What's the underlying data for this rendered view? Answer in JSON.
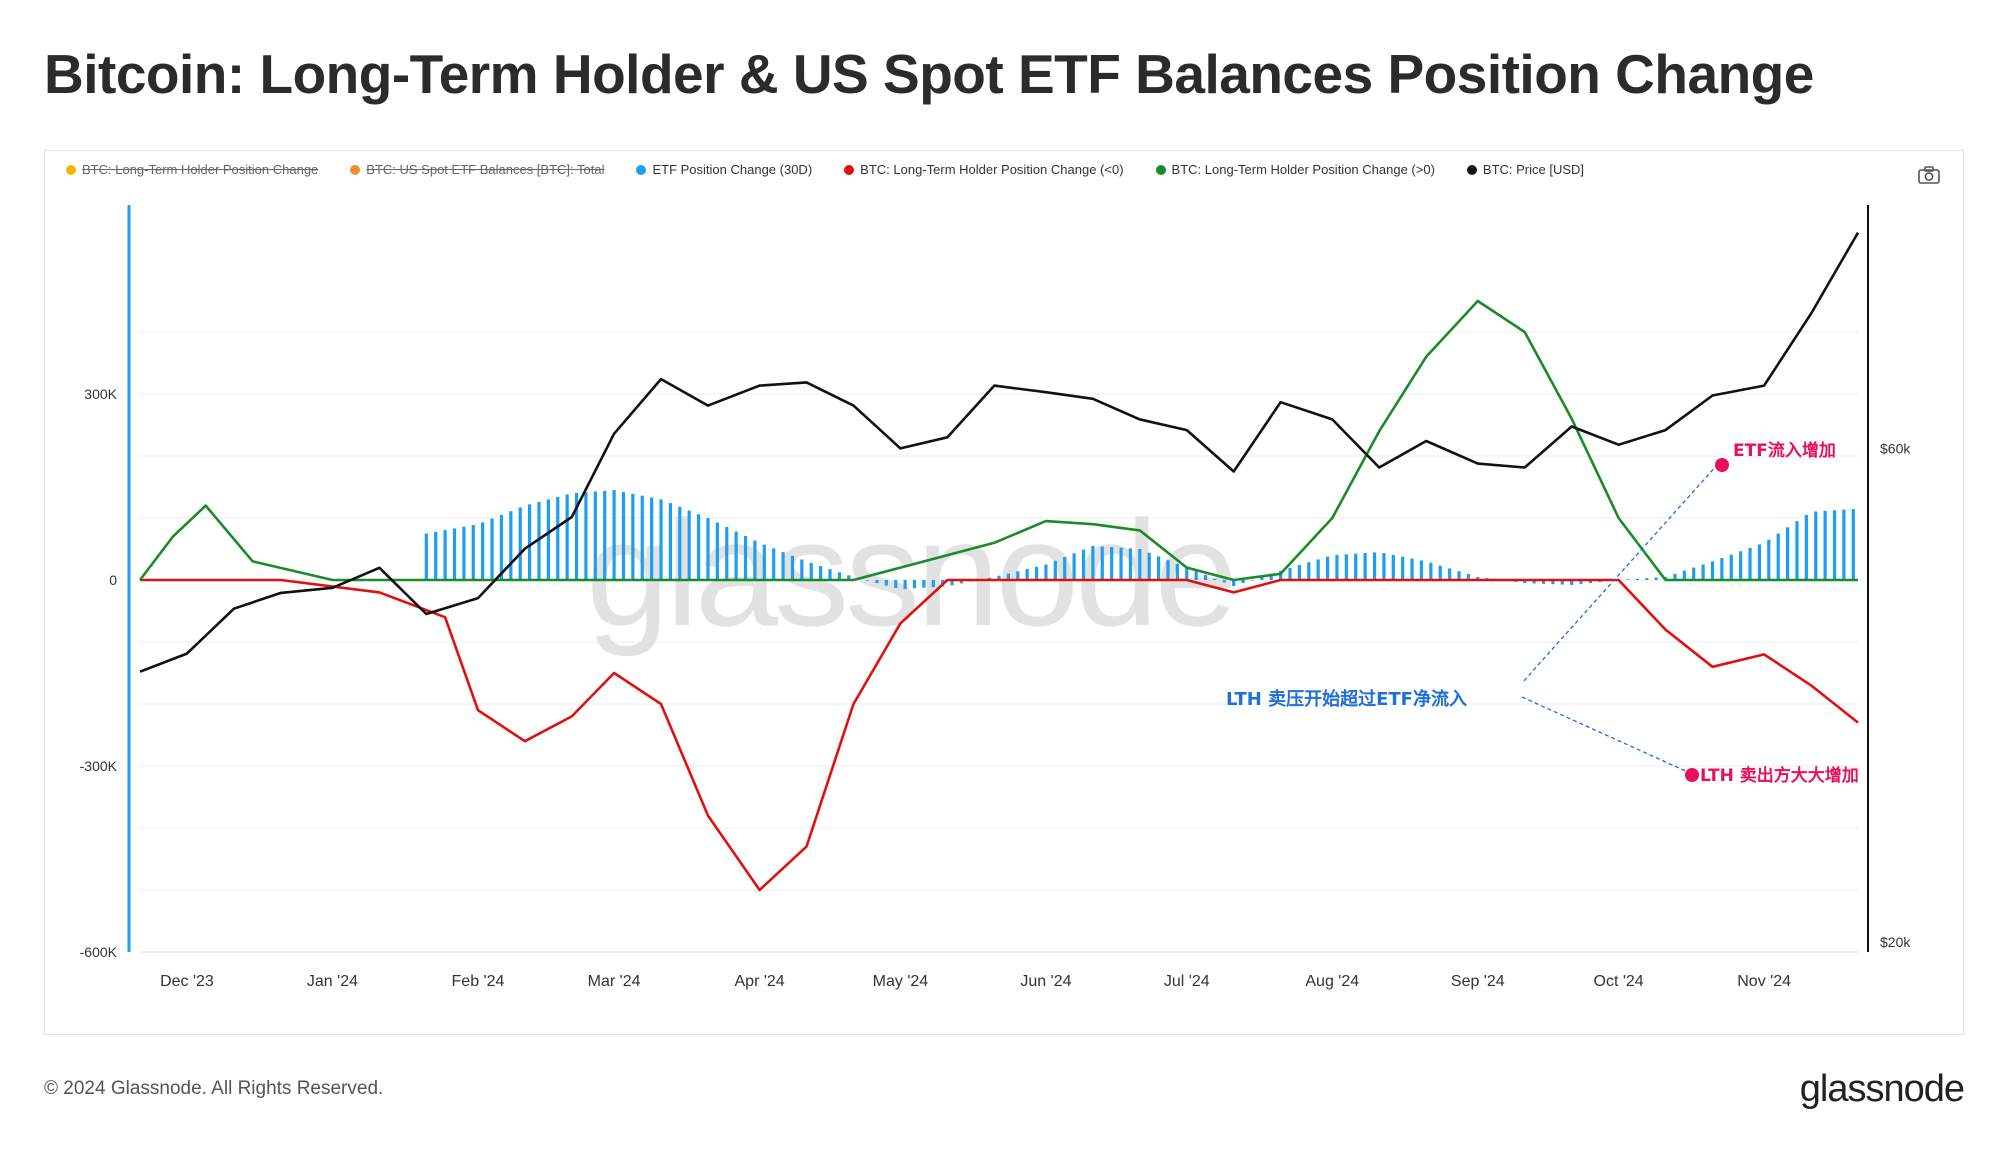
{
  "title": "Bitcoin: Long-Term Holder & US Spot ETF Balances Position Change",
  "legend": [
    {
      "label": "BTC: Long-Term Holder Position Change",
      "color": "#f2b705",
      "disabled": true
    },
    {
      "label": "BTC: US Spot ETF Balances [BTC]: Total",
      "color": "#f28c28",
      "disabled": true
    },
    {
      "label": "ETF Position Change (30D)",
      "color": "#1e9ef0",
      "disabled": false
    },
    {
      "label": "BTC: Long-Term Holder Position Change (<0)",
      "color": "#e01010",
      "disabled": false
    },
    {
      "label": "BTC: Long-Term Holder Position Change (>0)",
      "color": "#1a8a2a",
      "disabled": false
    },
    {
      "label": "BTC: Price [USD]",
      "color": "#111111",
      "disabled": false
    }
  ],
  "watermark": "glassnode",
  "annotations": {
    "etf": "ETF流入增加",
    "lth_cross": "LTH 卖压开始超过ETF净流入",
    "lth_sell": "LTH 卖出方大大增加"
  },
  "footer": {
    "copyright": "© 2024 Glassnode. All Rights Reserved.",
    "brand": "glassnode"
  },
  "chart_data": {
    "type": "line",
    "x_start": "2023-11-21",
    "x_end": "2024-11-21",
    "x_ticks": [
      "Dec '23",
      "Jan '24",
      "Feb '24",
      "Mar '24",
      "Apr '24",
      "May '24",
      "Jun '24",
      "Jul '24",
      "Aug '24",
      "Sep '24",
      "Oct '24",
      "Nov '24"
    ],
    "left_axis": {
      "ticks": [
        "300K",
        "0",
        "-300K",
        "-600K"
      ],
      "values": [
        300000,
        0,
        -300000,
        -600000
      ],
      "range": [
        -600000,
        600000
      ],
      "color": "#1e9ef0"
    },
    "right_axis": {
      "ticks": [
        "$60k",
        "$20k"
      ],
      "values": [
        60000,
        20000
      ],
      "scale": "log",
      "range": [
        20000,
        102000
      ],
      "color": "#111111"
    },
    "series": [
      {
        "name": "ETF Position Change (30D)",
        "type": "bar",
        "axis": "left",
        "color": "#1e9ef0",
        "x": [
          "2024-01-21",
          "2024-02-01",
          "2024-02-11",
          "2024-02-21",
          "2024-03-01",
          "2024-03-11",
          "2024-03-21",
          "2024-04-01",
          "2024-04-11",
          "2024-04-21",
          "2024-05-01",
          "2024-05-11",
          "2024-05-21",
          "2024-06-01",
          "2024-06-11",
          "2024-06-21",
          "2024-07-01",
          "2024-07-11",
          "2024-07-21",
          "2024-08-01",
          "2024-08-11",
          "2024-08-21",
          "2024-09-01",
          "2024-09-11",
          "2024-09-21",
          "2024-10-01",
          "2024-10-11",
          "2024-10-21",
          "2024-11-01",
          "2024-11-11",
          "2024-11-21"
        ],
        "values": [
          75000,
          90000,
          120000,
          140000,
          145000,
          130000,
          100000,
          60000,
          30000,
          5000,
          -15000,
          -10000,
          5000,
          25000,
          55000,
          50000,
          20000,
          -10000,
          15000,
          40000,
          45000,
          30000,
          5000,
          -5000,
          -8000,
          0,
          5000,
          30000,
          60000,
          110000,
          115000
        ]
      },
      {
        "name": "BTC: Long-Term Holder Position Change (<0)",
        "type": "line",
        "axis": "left",
        "color": "#e01010",
        "x": [
          "2023-11-21",
          "2023-12-21",
          "2024-01-11",
          "2024-01-25",
          "2024-02-01",
          "2024-02-11",
          "2024-02-21",
          "2024-03-01",
          "2024-03-11",
          "2024-03-21",
          "2024-04-01",
          "2024-04-11",
          "2024-04-21",
          "2024-05-01",
          "2024-05-11",
          "2024-06-01",
          "2024-07-01",
          "2024-07-11",
          "2024-07-21",
          "2024-08-01",
          "2024-09-01",
          "2024-10-01",
          "2024-10-11",
          "2024-10-21",
          "2024-11-01",
          "2024-11-11",
          "2024-11-21"
        ],
        "values": [
          0,
          0,
          -20000,
          -60000,
          -210000,
          -260000,
          -220000,
          -150000,
          -200000,
          -380000,
          -500000,
          -430000,
          -200000,
          -70000,
          0,
          0,
          0,
          -20000,
          0,
          0,
          0,
          0,
          -80000,
          -140000,
          -120000,
          -170000,
          -230000
        ]
      },
      {
        "name": "BTC: Long-Term Holder Position Change (>0)",
        "type": "line",
        "axis": "left",
        "color": "#1a8a2a",
        "x": [
          "2023-11-21",
          "2023-11-28",
          "2023-12-05",
          "2023-12-15",
          "2024-01-01",
          "2024-04-21",
          "2024-05-01",
          "2024-05-21",
          "2024-06-01",
          "2024-06-11",
          "2024-06-21",
          "2024-07-01",
          "2024-07-11",
          "2024-07-21",
          "2024-08-01",
          "2024-08-11",
          "2024-08-21",
          "2024-09-01",
          "2024-09-11",
          "2024-09-21",
          "2024-10-01",
          "2024-10-11",
          "2024-11-21"
        ],
        "values": [
          0,
          70000,
          120000,
          30000,
          0,
          0,
          20000,
          60000,
          95000,
          90000,
          80000,
          20000,
          0,
          10000,
          100000,
          240000,
          360000,
          450000,
          400000,
          260000,
          100000,
          0,
          0
        ]
      },
      {
        "name": "BTC: Price [USD]",
        "type": "line",
        "axis": "right",
        "color": "#111111",
        "x": [
          "2023-11-21",
          "2023-12-01",
          "2023-12-11",
          "2023-12-21",
          "2024-01-01",
          "2024-01-11",
          "2024-01-21",
          "2024-02-01",
          "2024-02-11",
          "2024-02-21",
          "2024-03-01",
          "2024-03-11",
          "2024-03-21",
          "2024-04-01",
          "2024-04-11",
          "2024-04-21",
          "2024-05-01",
          "2024-05-11",
          "2024-05-21",
          "2024-06-01",
          "2024-06-11",
          "2024-06-21",
          "2024-07-01",
          "2024-07-11",
          "2024-07-21",
          "2024-08-01",
          "2024-08-11",
          "2024-08-21",
          "2024-09-01",
          "2024-09-11",
          "2024-09-21",
          "2024-10-01",
          "2024-10-11",
          "2024-10-21",
          "2024-11-01",
          "2024-11-11",
          "2024-11-21"
        ],
        "values": [
          36500,
          38000,
          42000,
          43500,
          44000,
          46000,
          41500,
          43000,
          48000,
          51500,
          62000,
          70000,
          66000,
          69000,
          69500,
          66000,
          60000,
          61500,
          69000,
          68000,
          67000,
          64000,
          62500,
          57000,
          66500,
          64000,
          57500,
          61000,
          58000,
          57500,
          63000,
          60500,
          62500,
          67500,
          69000,
          81000,
          97000
        ]
      }
    ]
  }
}
